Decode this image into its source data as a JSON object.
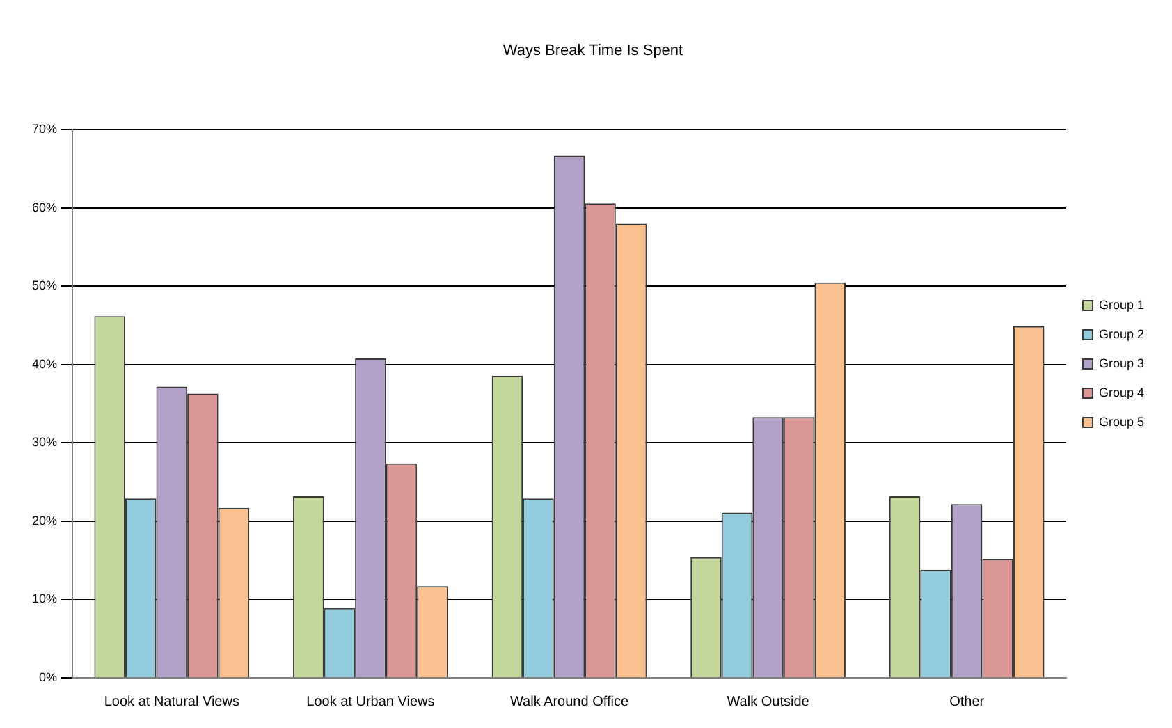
{
  "chart_data": {
    "type": "bar",
    "title": "Ways Break Time Is Spent",
    "categories": [
      "Look at Natural Views",
      "Look at Urban Views",
      "Walk Around Office",
      "Walk Outside",
      "Other"
    ],
    "series": [
      {
        "name": "Group 1",
        "color": "#c3d69b",
        "values": [
          46.2,
          23.2,
          38.6,
          15.4,
          23.2
        ]
      },
      {
        "name": "Group 2",
        "color": "#93cddd",
        "values": [
          22.9,
          8.9,
          22.9,
          21.1,
          13.8
        ]
      },
      {
        "name": "Group 3",
        "color": "#b3a2c7",
        "values": [
          37.2,
          40.8,
          66.7,
          33.3,
          22.2
        ]
      },
      {
        "name": "Group 4",
        "color": "#d99694",
        "values": [
          36.3,
          27.4,
          60.6,
          33.3,
          15.2
        ]
      },
      {
        "name": "Group 5",
        "color": "#fac090",
        "values": [
          21.7,
          11.7,
          58.0,
          50.5,
          44.9
        ]
      }
    ],
    "ylim": [
      0,
      70
    ],
    "yticks": [
      {
        "value": 0,
        "label": "0%"
      },
      {
        "value": 10,
        "label": "10%"
      },
      {
        "value": 20,
        "label": "20%"
      },
      {
        "value": 30,
        "label": "30%"
      },
      {
        "value": 40,
        "label": "40%"
      },
      {
        "value": 50,
        "label": "50%"
      },
      {
        "value": 60,
        "label": "60%"
      },
      {
        "value": 70,
        "label": "70%"
      }
    ],
    "grid": "y",
    "legend": "right"
  }
}
